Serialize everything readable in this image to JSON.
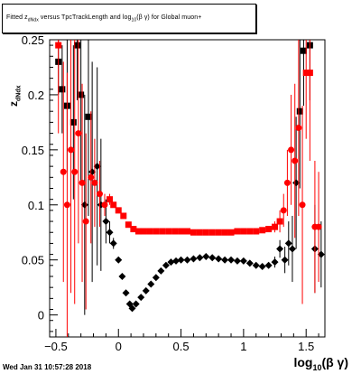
{
  "title": {
    "pre": "Fitted  z",
    "sub": "dNdx",
    "mid": "  versus TpcTrackLength and log",
    "sub2": "10",
    "post": "(β γ) for Global muon+"
  },
  "ylabel": {
    "main": "z",
    "sub": "dNdx"
  },
  "xlabel": {
    "main": "log",
    "sub": "10",
    "post": "(β γ)"
  },
  "timestamp": "Wed Jan 31 10:57:28 2018",
  "colors": {
    "black_series": "#000000",
    "red_series": "#ff0000"
  },
  "chart_data": {
    "type": "scatter",
    "x_range": [
      -0.55,
      1.65
    ],
    "y_range": [
      -0.02,
      0.25
    ],
    "x_ticks": [
      "−0.5",
      "0",
      "0.5",
      "1",
      "1.5"
    ],
    "x_tick_values": [
      -0.5,
      0,
      0.5,
      1,
      1.5
    ],
    "y_ticks": [
      "0",
      "0.05",
      "0.1",
      "0.15",
      "0.2",
      "0.25"
    ],
    "y_tick_values": [
      0,
      0.05,
      0.1,
      0.15,
      0.2,
      0.25
    ],
    "series": [
      {
        "color": "black",
        "points": [
          {
            "x": -0.48,
            "y": 0.23,
            "e": 0.03
          },
          {
            "x": -0.45,
            "y": 0.205,
            "e": 0.04
          },
          {
            "x": -0.41,
            "y": 0.19,
            "e": 0.06
          },
          {
            "x": -0.36,
            "y": 0.175,
            "e": 0.07
          },
          {
            "x": -0.33,
            "y": 0.245,
            "e": 0.05
          },
          {
            "x": -0.3,
            "y": 0.2,
            "e": 0.08
          },
          {
            "x": -0.27,
            "y": 0.1,
            "e": 0.1
          },
          {
            "x": -0.24,
            "y": 0.18,
            "e": 0.09
          },
          {
            "x": -0.21,
            "y": 0.13,
            "e": 0.1
          },
          {
            "x": -0.17,
            "y": 0.135,
            "e": 0.09
          },
          {
            "x": -0.14,
            "y": 0.1,
            "e": 0.06
          },
          {
            "x": -0.1,
            "y": 0.085,
            "e": 0.02
          },
          {
            "x": -0.07,
            "y": 0.075,
            "e": 0.01
          },
          {
            "x": -0.04,
            "y": 0.065,
            "e": 0.005
          },
          {
            "x": 0.0,
            "y": 0.05,
            "e": 0.003
          },
          {
            "x": 0.03,
            "y": 0.035,
            "e": 0.002
          },
          {
            "x": 0.06,
            "y": 0.02,
            "e": 0.002
          },
          {
            "x": 0.09,
            "y": 0.01,
            "e": 0.002
          },
          {
            "x": 0.11,
            "y": 0.006,
            "e": 0.002
          },
          {
            "x": 0.14,
            "y": 0.01,
            "e": 0.002
          },
          {
            "x": 0.18,
            "y": 0.016,
            "e": 0.002
          },
          {
            "x": 0.22,
            "y": 0.022,
            "e": 0.002
          },
          {
            "x": 0.26,
            "y": 0.028,
            "e": 0.002
          },
          {
            "x": 0.3,
            "y": 0.034,
            "e": 0.002
          },
          {
            "x": 0.34,
            "y": 0.04,
            "e": 0.002
          },
          {
            "x": 0.38,
            "y": 0.045,
            "e": 0.002
          },
          {
            "x": 0.42,
            "y": 0.048,
            "e": 0.002
          },
          {
            "x": 0.46,
            "y": 0.049,
            "e": 0.002
          },
          {
            "x": 0.5,
            "y": 0.05,
            "e": 0.002
          },
          {
            "x": 0.55,
            "y": 0.05,
            "e": 0.002
          },
          {
            "x": 0.6,
            "y": 0.051,
            "e": 0.002
          },
          {
            "x": 0.65,
            "y": 0.052,
            "e": 0.002
          },
          {
            "x": 0.7,
            "y": 0.053,
            "e": 0.002
          },
          {
            "x": 0.75,
            "y": 0.052,
            "e": 0.002
          },
          {
            "x": 0.8,
            "y": 0.051,
            "e": 0.002
          },
          {
            "x": 0.85,
            "y": 0.05,
            "e": 0.002
          },
          {
            "x": 0.9,
            "y": 0.05,
            "e": 0.002
          },
          {
            "x": 0.95,
            "y": 0.049,
            "e": 0.002
          },
          {
            "x": 1.0,
            "y": 0.049,
            "e": 0.002
          },
          {
            "x": 1.05,
            "y": 0.047,
            "e": 0.002
          },
          {
            "x": 1.1,
            "y": 0.045,
            "e": 0.002
          },
          {
            "x": 1.15,
            "y": 0.044,
            "e": 0.003
          },
          {
            "x": 1.2,
            "y": 0.045,
            "e": 0.003
          },
          {
            "x": 1.25,
            "y": 0.048,
            "e": 0.005
          },
          {
            "x": 1.29,
            "y": 0.06,
            "e": 0.008
          },
          {
            "x": 1.33,
            "y": 0.05,
            "e": 0.012
          },
          {
            "x": 1.36,
            "y": 0.065,
            "e": 0.02
          },
          {
            "x": 1.39,
            "y": 0.06,
            "e": 0.03
          },
          {
            "x": 1.42,
            "y": 0.12,
            "e": 0.06
          },
          {
            "x": 1.45,
            "y": 0.185,
            "e": 0.07
          },
          {
            "x": 1.48,
            "y": 0.24,
            "e": 0.05
          },
          {
            "x": 1.53,
            "y": 0.245,
            "e": 0.05
          },
          {
            "x": 1.57,
            "y": 0.06,
            "e": 0.04
          },
          {
            "x": 1.62,
            "y": 0.055,
            "e": 0.03
          }
        ]
      },
      {
        "color": "red",
        "points": [
          {
            "x": -0.48,
            "y": 0.245,
            "e": 0.08
          },
          {
            "x": -0.44,
            "y": 0.13,
            "e": 0.1
          },
          {
            "x": -0.41,
            "y": 0.1,
            "e": 0.12
          },
          {
            "x": -0.38,
            "y": 0.15,
            "e": 0.13
          },
          {
            "x": -0.35,
            "y": 0.13,
            "e": 0.12
          },
          {
            "x": -0.32,
            "y": 0.165,
            "e": 0.1
          },
          {
            "x": -0.29,
            "y": 0.12,
            "e": 0.09
          },
          {
            "x": -0.26,
            "y": 0.085,
            "e": 0.08
          },
          {
            "x": -0.22,
            "y": 0.125,
            "e": 0.06
          },
          {
            "x": -0.19,
            "y": 0.12,
            "e": 0.04
          },
          {
            "x": -0.15,
            "y": 0.11,
            "e": 0.03
          },
          {
            "x": -0.11,
            "y": 0.1,
            "e": 0.01
          },
          {
            "x": -0.07,
            "y": 0.105,
            "e": 0.005
          },
          {
            "x": -0.04,
            "y": 0.1,
            "e": 0.003
          },
          {
            "x": 0.0,
            "y": 0.095,
            "e": 0.003
          },
          {
            "x": 0.04,
            "y": 0.09,
            "e": 0.002
          },
          {
            "x": 0.08,
            "y": 0.082,
            "e": 0.002
          },
          {
            "x": 0.12,
            "y": 0.078,
            "e": 0.002
          },
          {
            "x": 0.16,
            "y": 0.076,
            "e": 0.002
          },
          {
            "x": 0.2,
            "y": 0.076,
            "e": 0.002
          },
          {
            "x": 0.25,
            "y": 0.076,
            "e": 0.002
          },
          {
            "x": 0.3,
            "y": 0.076,
            "e": 0.002
          },
          {
            "x": 0.35,
            "y": 0.076,
            "e": 0.002
          },
          {
            "x": 0.4,
            "y": 0.076,
            "e": 0.002
          },
          {
            "x": 0.45,
            "y": 0.076,
            "e": 0.002
          },
          {
            "x": 0.5,
            "y": 0.076,
            "e": 0.002
          },
          {
            "x": 0.55,
            "y": 0.076,
            "e": 0.002
          },
          {
            "x": 0.6,
            "y": 0.075,
            "e": 0.002
          },
          {
            "x": 0.65,
            "y": 0.075,
            "e": 0.002
          },
          {
            "x": 0.7,
            "y": 0.075,
            "e": 0.002
          },
          {
            "x": 0.75,
            "y": 0.075,
            "e": 0.002
          },
          {
            "x": 0.8,
            "y": 0.075,
            "e": 0.002
          },
          {
            "x": 0.85,
            "y": 0.075,
            "e": 0.002
          },
          {
            "x": 0.9,
            "y": 0.075,
            "e": 0.002
          },
          {
            "x": 0.95,
            "y": 0.076,
            "e": 0.002
          },
          {
            "x": 1.0,
            "y": 0.076,
            "e": 0.002
          },
          {
            "x": 1.05,
            "y": 0.076,
            "e": 0.002
          },
          {
            "x": 1.1,
            "y": 0.076,
            "e": 0.002
          },
          {
            "x": 1.15,
            "y": 0.077,
            "e": 0.003
          },
          {
            "x": 1.2,
            "y": 0.078,
            "e": 0.003
          },
          {
            "x": 1.25,
            "y": 0.08,
            "e": 0.005
          },
          {
            "x": 1.29,
            "y": 0.085,
            "e": 0.01
          },
          {
            "x": 1.32,
            "y": 0.095,
            "e": 0.015
          },
          {
            "x": 1.35,
            "y": 0.12,
            "e": 0.03
          },
          {
            "x": 1.38,
            "y": 0.15,
            "e": 0.05
          },
          {
            "x": 1.41,
            "y": 0.14,
            "e": 0.07
          },
          {
            "x": 1.44,
            "y": 0.17,
            "e": 0.08
          },
          {
            "x": 1.47,
            "y": 0.1,
            "e": 0.09
          },
          {
            "x": 1.5,
            "y": 0.22,
            "e": 0.06
          },
          {
            "x": 1.53,
            "y": 0.22,
            "e": 0.08
          },
          {
            "x": 1.57,
            "y": 0.08,
            "e": 0.06
          },
          {
            "x": 1.6,
            "y": 0.08,
            "e": 0.05
          }
        ]
      }
    ]
  }
}
